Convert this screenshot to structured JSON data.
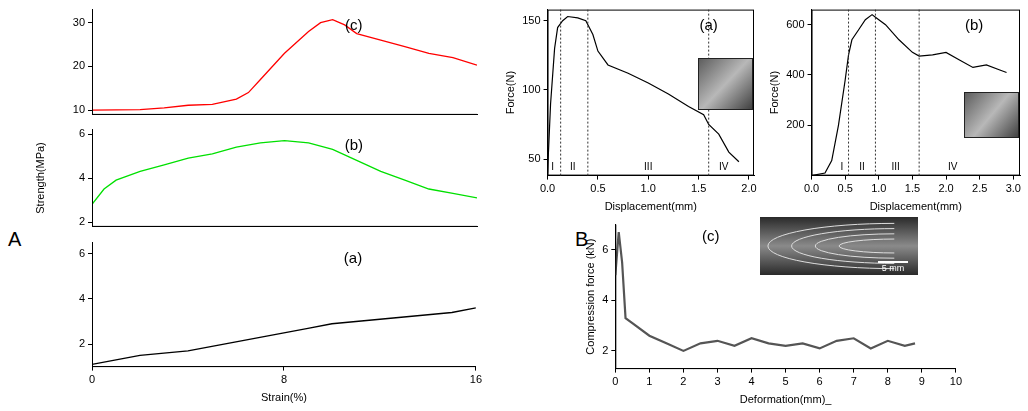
{
  "panel_labels": [
    "A",
    "B"
  ],
  "chart_data": [
    {
      "type": "line",
      "panel": "A",
      "title": "(c)",
      "color": "#ff0000",
      "x": [
        0,
        2,
        3,
        4,
        5,
        6,
        6.5,
        7,
        8,
        9,
        9.5,
        10,
        10.5,
        11,
        12,
        13,
        14,
        15,
        16
      ],
      "values": [
        10,
        10.1,
        10.5,
        11.1,
        11.3,
        12.5,
        14,
        17,
        23,
        28,
        30,
        30.7,
        29.5,
        27.5,
        26,
        24.5,
        23,
        22,
        20.3
      ],
      "xlim": [
        0,
        16
      ],
      "xticks": [
        0,
        8,
        16
      ],
      "ylim": [
        9,
        33
      ],
      "yticks": [
        10,
        20,
        30
      ],
      "tick_labels": "y"
    },
    {
      "type": "line",
      "panel": "A",
      "title": "(b)",
      "color": "#00e000",
      "y_label": "Strength(MPa)",
      "x": [
        0,
        0.5,
        1,
        2,
        3,
        4,
        5,
        6,
        7,
        8,
        9,
        10,
        11,
        12,
        13,
        14,
        15,
        16
      ],
      "values": [
        2.8,
        3.5,
        3.9,
        4.3,
        4.6,
        4.9,
        5.1,
        5.4,
        5.6,
        5.7,
        5.6,
        5.3,
        4.8,
        4.3,
        3.9,
        3.5,
        3.3,
        3.1
      ],
      "xlim": [
        0,
        16
      ],
      "xticks": [
        0,
        8,
        16
      ],
      "ylim": [
        1.8,
        6.2
      ],
      "yticks": [
        2,
        4,
        6
      ],
      "tick_labels": "y"
    },
    {
      "type": "line",
      "panel": "A",
      "title": "(a)",
      "color": "#000000",
      "x_label": "Strain(%)",
      "x": [
        0,
        1,
        2,
        3,
        4,
        5,
        6,
        7,
        8,
        9,
        10,
        11,
        12,
        13,
        14,
        15,
        16
      ],
      "values": [
        1.1,
        1.3,
        1.5,
        1.6,
        1.7,
        1.9,
        2.1,
        2.3,
        2.5,
        2.7,
        2.9,
        3.0,
        3.1,
        3.2,
        3.3,
        3.4,
        3.6
      ],
      "xlim": [
        0,
        16
      ],
      "xticks": [
        0,
        8,
        16
      ],
      "ylim": [
        1,
        6.5
      ],
      "yticks": [
        2,
        4,
        6
      ]
    },
    {
      "type": "line",
      "panel": "B",
      "title": "(a)",
      "color": "#000000",
      "x_label": "Displacement(mm)",
      "y_label": "Force(N)",
      "x": [
        0,
        0.03,
        0.07,
        0.1,
        0.15,
        0.2,
        0.3,
        0.38,
        0.45,
        0.5,
        0.6,
        0.8,
        1.0,
        1.2,
        1.4,
        1.55,
        1.6,
        1.7,
        1.8,
        1.9
      ],
      "values": [
        40,
        90,
        130,
        145,
        150,
        153,
        152,
        150,
        140,
        128,
        118,
        112,
        105,
        97,
        88,
        82,
        75,
        68,
        55,
        48
      ],
      "xlim": [
        0,
        2.05
      ],
      "xticks": [
        {
          "value": 0,
          "label": "0.0"
        },
        {
          "value": 0.5,
          "label": "0.5"
        },
        {
          "value": 1,
          "label": "1.0"
        },
        {
          "value": 1.5,
          "label": "1.5"
        },
        {
          "value": 2,
          "label": "2.0"
        }
      ],
      "ylim": [
        38,
        158
      ],
      "yticks": [
        50,
        100,
        150
      ],
      "vlines": [
        0.13,
        0.4,
        1.6
      ],
      "annotations": [
        {
          "text": "I",
          "x": 0.05
        },
        {
          "text": "II",
          "x": 0.25
        },
        {
          "text": "III",
          "x": 1.0
        },
        {
          "text": "IV",
          "x": 1.75
        }
      ]
    },
    {
      "type": "line",
      "panel": "B",
      "title": "(b)",
      "color": "#000000",
      "x_label": "Displacement(mm)",
      "y_label": "Force(N)",
      "x": [
        0,
        0.2,
        0.3,
        0.4,
        0.5,
        0.55,
        0.6,
        0.7,
        0.8,
        0.9,
        0.95,
        1.1,
        1.3,
        1.5,
        1.6,
        1.8,
        2.0,
        2.2,
        2.4,
        2.6,
        2.8,
        2.9
      ],
      "values": [
        0,
        10,
        60,
        200,
        380,
        480,
        540,
        580,
        620,
        640,
        630,
        600,
        540,
        490,
        475,
        480,
        490,
        460,
        430,
        440,
        420,
        410
      ],
      "xlim": [
        0,
        3.1
      ],
      "xticks": [
        {
          "value": 0,
          "label": "0.0"
        },
        {
          "value": 0.5,
          "label": "0.5"
        },
        {
          "value": 1,
          "label": "1.0"
        },
        {
          "value": 1.5,
          "label": "1.5"
        },
        {
          "value": 2,
          "label": "2.0"
        },
        {
          "value": 2.5,
          "label": "2.5"
        },
        {
          "value": 3,
          "label": "3.0"
        }
      ],
      "ylim": [
        0,
        660
      ],
      "yticks": [
        200,
        400,
        600
      ],
      "vlines": [
        0.55,
        0.95,
        1.6
      ],
      "annotations": [
        {
          "text": "I",
          "x": 0.45
        },
        {
          "text": "II",
          "x": 0.75
        },
        {
          "text": "III",
          "x": 1.25
        },
        {
          "text": "IV",
          "x": 2.1
        }
      ]
    },
    {
      "type": "line",
      "panel": "B",
      "title": "(c)",
      "color": "#555555",
      "x_label": "Deformation(mm)_",
      "y_label": "Compression force (kN)",
      "inset_text": "5 mm",
      "x": [
        0,
        0.1,
        0.2,
        0.3,
        0.5,
        1,
        1.5,
        2,
        2.5,
        3,
        3.5,
        4,
        4.5,
        5,
        5.5,
        6,
        6.5,
        7,
        7.5,
        8,
        8.5,
        8.8
      ],
      "values": [
        5,
        6.7,
        5.5,
        3.3,
        3.1,
        2.6,
        2.3,
        2.0,
        2.3,
        2.4,
        2.2,
        2.5,
        2.3,
        2.2,
        2.3,
        2.1,
        2.4,
        2.5,
        2.1,
        2.4,
        2.2,
        2.3
      ],
      "xlim": [
        0,
        10
      ],
      "xticks": [
        0,
        1,
        2,
        3,
        4,
        5,
        6,
        7,
        8,
        9,
        10
      ],
      "ylim": [
        1.3,
        7
      ],
      "yticks": [
        2,
        4,
        6
      ]
    }
  ]
}
